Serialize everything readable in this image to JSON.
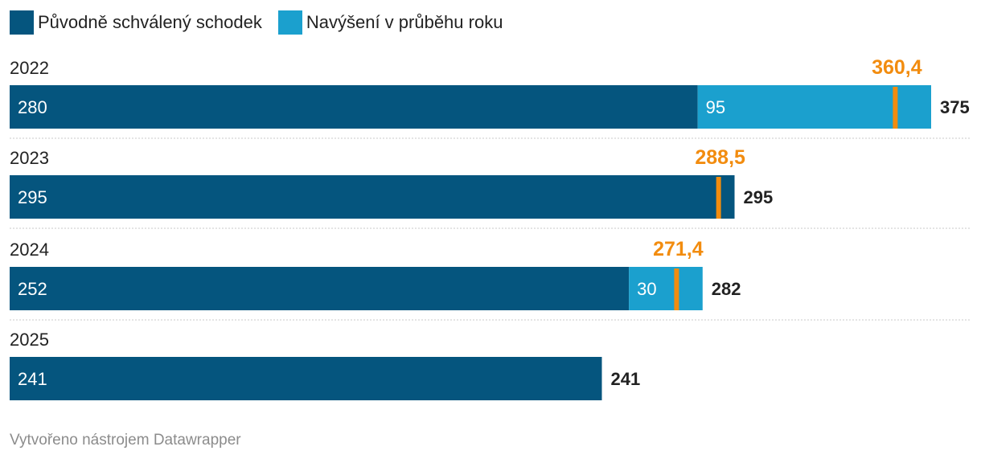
{
  "legend": {
    "items": [
      {
        "label": "Původně schválený schodek",
        "color": "#05557e"
      },
      {
        "label": "Navýšení v průběhu roku",
        "color": "#1ba0ce"
      }
    ]
  },
  "chart_data": {
    "type": "bar",
    "orientation": "horizontal",
    "stacked": true,
    "categories": [
      "2022",
      "2023",
      "2024",
      "2025"
    ],
    "series": [
      {
        "name": "Původně schválený schodek",
        "color": "#05557e",
        "values": [
          280,
          295,
          252,
          241
        ],
        "labels": [
          "280",
          "295",
          "252",
          "241"
        ]
      },
      {
        "name": "Navýšení v průběhu roku",
        "color": "#1ba0ce",
        "values": [
          95,
          0,
          30,
          0
        ],
        "labels": [
          "95",
          "",
          "30",
          ""
        ]
      }
    ],
    "totals": [
      375,
      295,
      282,
      241
    ],
    "total_labels": [
      "375",
      "295",
      "282",
      "241"
    ],
    "markers": {
      "color": "#f28c0f",
      "values": [
        360.4,
        288.5,
        271.4,
        null
      ],
      "labels": [
        "360,4",
        "288,5",
        "271,4",
        ""
      ]
    },
    "xlim": [
      0,
      375
    ]
  },
  "footer": {
    "text": "Vytvořeno nástrojem Datawrapper"
  }
}
